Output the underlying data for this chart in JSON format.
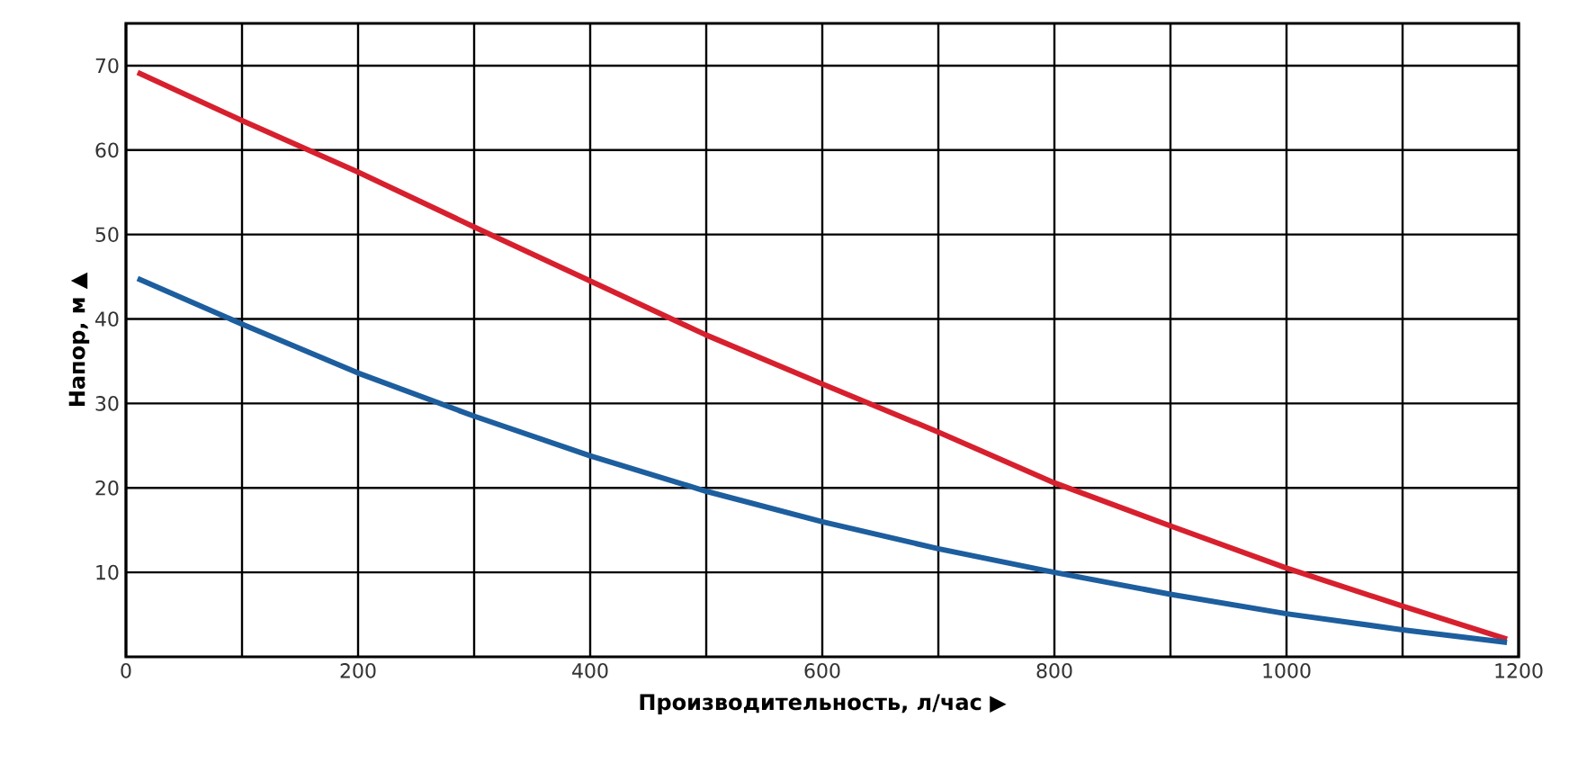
{
  "chart_data": {
    "type": "line",
    "xlabel": "Производительность, л/час  ▶",
    "ylabel": "Напор, м  ▲",
    "x": [
      10,
      100,
      200,
      300,
      400,
      500,
      600,
      700,
      800,
      900,
      1000,
      1100,
      1190
    ],
    "series": [
      {
        "color": "#d7202e",
        "values": [
          69.2,
          63.5,
          57.4,
          50.9,
          44.5,
          38.1,
          32.3,
          26.6,
          20.6,
          15.5,
          10.5,
          6,
          2.1
        ]
      },
      {
        "color": "#1d5e9e",
        "values": [
          44.8,
          39.4,
          33.6,
          28.5,
          23.8,
          19.6,
          16,
          12.8,
          10,
          7.4,
          5.1,
          3.2,
          1.7
        ]
      }
    ],
    "xlim": [
      0,
      1200
    ],
    "ylim": [
      0,
      75
    ],
    "xticks": [
      0,
      {
        "value": 100,
        "label": null
      },
      200,
      {
        "value": 300,
        "label": null
      },
      400,
      {
        "value": 500,
        "label": null
      },
      600,
      {
        "value": 700,
        "label": null
      },
      800,
      {
        "value": 900,
        "label": null
      },
      1000,
      {
        "value": 1100,
        "label": null
      },
      1200
    ],
    "yticks": [
      10,
      20,
      30,
      40,
      50,
      60,
      70
    ],
    "grid": true
  }
}
